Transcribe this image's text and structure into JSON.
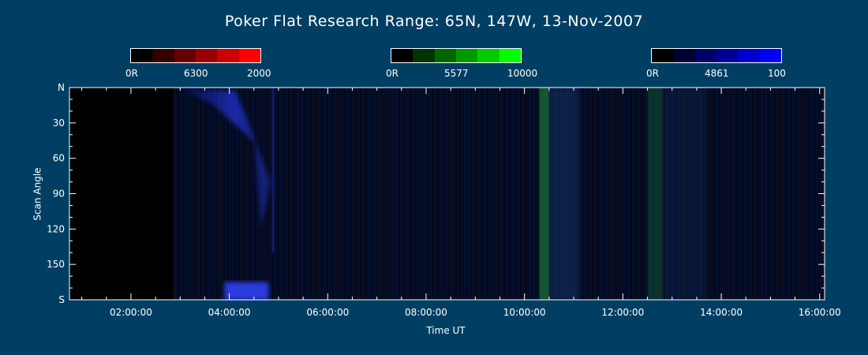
{
  "title": "Poker Flat Research Range: 65N, 147W, 13-Nov-2007",
  "colorbars": [
    {
      "min_label": "0R",
      "wavelength_label": "6300",
      "max_label": "2000",
      "colors": [
        "#000000",
        "#330000",
        "#660000",
        "#990000",
        "#CC0000",
        "#FF0000"
      ]
    },
    {
      "min_label": "0R",
      "wavelength_label": "5577",
      "max_label": "10000",
      "colors": [
        "#000000",
        "#003300",
        "#006600",
        "#009900",
        "#00CC00",
        "#00FF00"
      ]
    },
    {
      "min_label": "0R",
      "wavelength_label": "4861",
      "max_label": "100",
      "colors": [
        "#000000",
        "#000033",
        "#000066",
        "#000099",
        "#0000CC",
        "#0000FF"
      ]
    }
  ],
  "chart_data": {
    "type": "heatmap",
    "xlabel": "Time UT",
    "ylabel": "Scan Angle",
    "x_tick_labels": [
      "02:00:00",
      "04:00:00",
      "06:00:00",
      "08:00:00",
      "10:00:00",
      "12:00:00",
      "14:00:00",
      "16:00:00"
    ],
    "x_tick_hours": [
      2,
      4,
      6,
      8,
      10,
      12,
      14,
      16
    ],
    "xlim_hours": [
      0.75,
      16.1
    ],
    "y_tick_labels": [
      "N",
      "30",
      "60",
      "90",
      "120",
      "150",
      "S"
    ],
    "y_tick_values": [
      0,
      30,
      60,
      90,
      120,
      150,
      180
    ],
    "ylim": [
      0,
      180
    ],
    "data_start_hour": 2.85,
    "features": [
      {
        "name": "blue arc",
        "channel": "4861",
        "time_start": 3.0,
        "time_end": 5.0,
        "angle_start": 0,
        "angle_end": 120,
        "intensity": 0.8
      },
      {
        "name": "blue band south",
        "channel": "4861",
        "time_start": 3.9,
        "time_end": 4.8,
        "angle_start": 165,
        "angle_end": 180,
        "intensity": 1.0
      },
      {
        "name": "green band",
        "channel": "5577",
        "time_start": 10.3,
        "time_end": 10.5,
        "angle_start": 0,
        "angle_end": 180,
        "intensity": 0.6
      },
      {
        "name": "green band",
        "channel": "5577",
        "time_start": 12.5,
        "time_end": 12.8,
        "angle_start": 0,
        "angle_end": 180,
        "intensity": 0.3
      }
    ]
  }
}
